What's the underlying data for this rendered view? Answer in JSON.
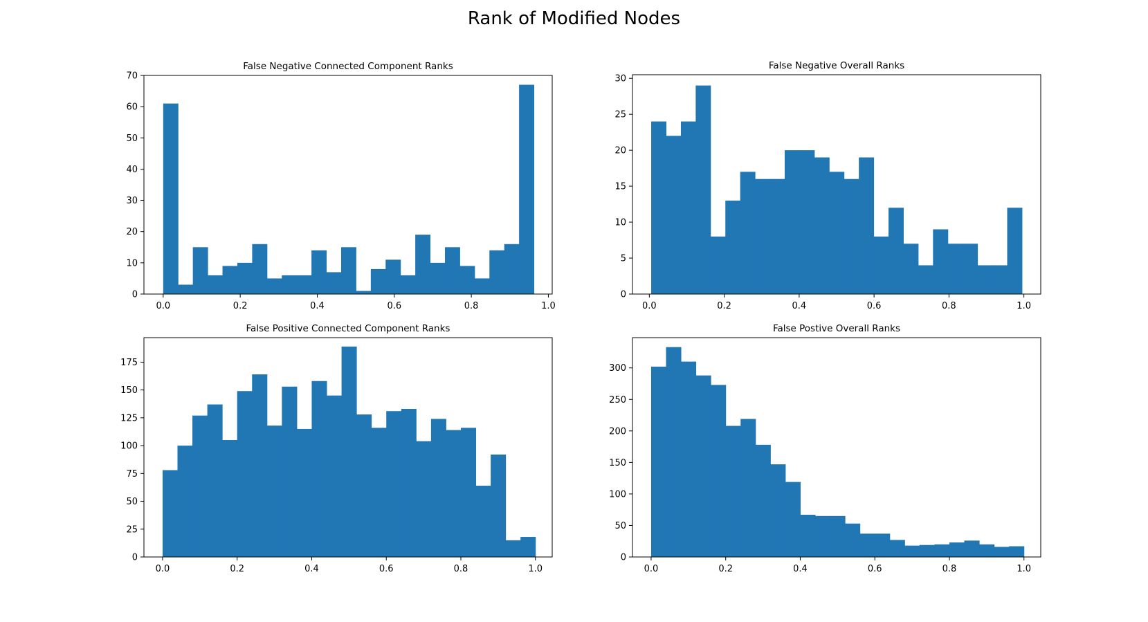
{
  "figure": {
    "title": "Rank of Modified Nodes"
  },
  "colors": {
    "bar": "#2077b4",
    "frame": "#000000"
  },
  "chart_data": [
    {
      "type": "bar",
      "title": "False Negative Connected Component Ranks",
      "xlim": [
        -0.05,
        1.01
      ],
      "ylim": [
        0,
        70
      ],
      "xticks": [
        "0.0",
        "0.2",
        "0.4",
        "0.6",
        "0.8",
        "1.0"
      ],
      "yticks": [
        "0",
        "10",
        "20",
        "30",
        "40",
        "50",
        "60",
        "70"
      ],
      "bin_start": 0.0,
      "bin_width": 0.0385,
      "values": [
        61,
        3,
        15,
        6,
        9,
        10,
        16,
        5,
        6,
        6,
        14,
        7,
        15,
        1,
        8,
        11,
        6,
        19,
        10,
        15,
        9,
        5,
        14,
        16,
        67
      ]
    },
    {
      "type": "bar",
      "title": "False Negative Overall Ranks",
      "xlim": [
        -0.045,
        1.045
      ],
      "ylim": [
        0,
        30.5
      ],
      "xticks": [
        "0.0",
        "0.2",
        "0.4",
        "0.6",
        "0.8",
        "1.0"
      ],
      "yticks": [
        "0",
        "5",
        "10",
        "15",
        "20",
        "25",
        "30"
      ],
      "bin_start": 0.005,
      "bin_width": 0.0396,
      "values": [
        24,
        22,
        24,
        29,
        8,
        13,
        17,
        16,
        16,
        20,
        20,
        19,
        17,
        16,
        19,
        8,
        12,
        7,
        4,
        9,
        7,
        7,
        4,
        4,
        12
      ]
    },
    {
      "type": "bar",
      "title": "False Positive Connected Component Ranks",
      "xlim": [
        -0.05,
        1.045
      ],
      "ylim": [
        0,
        197
      ],
      "xticks": [
        "0.0",
        "0.2",
        "0.4",
        "0.6",
        "0.8",
        "1.0"
      ],
      "yticks": [
        "0",
        "25",
        "50",
        "75",
        "100",
        "125",
        "150",
        "175"
      ],
      "bin_start": 0.0,
      "bin_width": 0.04,
      "values": [
        78,
        100,
        127,
        137,
        105,
        149,
        164,
        118,
        153,
        115,
        158,
        145,
        189,
        128,
        116,
        131,
        133,
        104,
        124,
        114,
        116,
        64,
        92,
        15,
        18
      ]
    },
    {
      "type": "bar",
      "title": "False Postive Overall Ranks",
      "xlim": [
        -0.05,
        1.045
      ],
      "ylim": [
        0,
        348
      ],
      "xticks": [
        "0.0",
        "0.2",
        "0.4",
        "0.6",
        "0.8",
        "1.0"
      ],
      "yticks": [
        "0",
        "50",
        "100",
        "150",
        "200",
        "250",
        "300"
      ],
      "bin_start": 0.0,
      "bin_width": 0.04,
      "values": [
        302,
        333,
        310,
        288,
        273,
        208,
        219,
        178,
        147,
        119,
        67,
        65,
        65,
        53,
        37,
        37,
        27,
        18,
        19,
        20,
        23,
        26,
        20,
        16,
        17
      ]
    }
  ]
}
